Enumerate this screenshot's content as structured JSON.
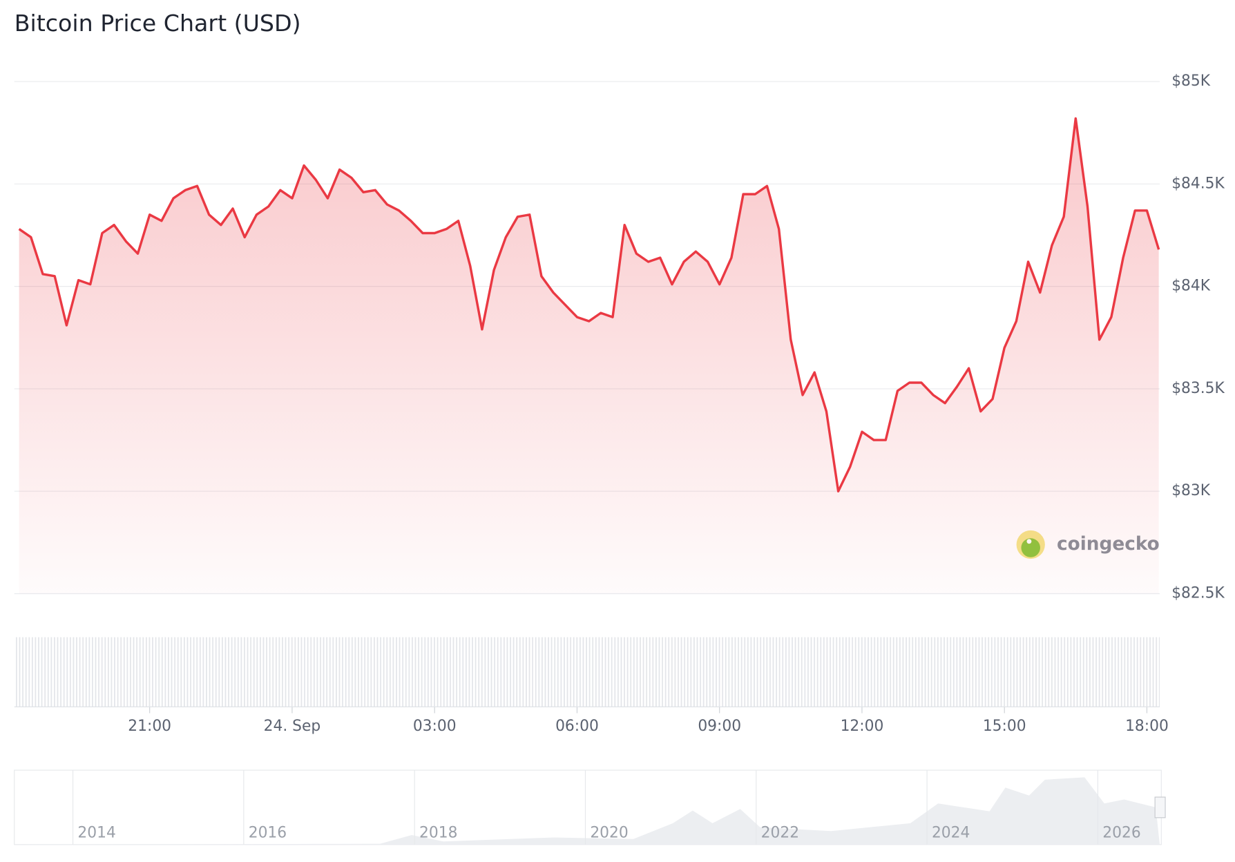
{
  "chart_data": {
    "type": "line",
    "title": "Bitcoin Price Chart (USD)",
    "series": [
      {
        "name": "Bitcoin",
        "color": "#ea3943",
        "values": [
          84280,
          84240,
          84060,
          84050,
          83810,
          84030,
          84010,
          84260,
          84300,
          84220,
          84160,
          84350,
          84320,
          84430,
          84470,
          84490,
          84350,
          84300,
          84380,
          84240,
          84350,
          84390,
          84470,
          84430,
          84590,
          84520,
          84430,
          84570,
          84530,
          84460,
          84470,
          84400,
          84370,
          84320,
          84260,
          84260,
          84280,
          84320,
          84100,
          83790,
          84080,
          84240,
          84340,
          84350,
          84050,
          83970,
          83910,
          83850,
          83830,
          83870,
          83850,
          84300,
          84160,
          84120,
          84140,
          84010,
          84120,
          84170,
          84120,
          84010,
          84140,
          84450,
          84450,
          84490,
          84280,
          83740,
          83470,
          83580,
          83390,
          83000,
          83120,
          83290,
          83250,
          83250,
          83490,
          83530,
          83530,
          83470,
          83430,
          83510,
          83600,
          83390,
          83450,
          83700,
          83830,
          84120,
          83970,
          84200,
          84340,
          84820,
          84390,
          83740,
          83850,
          84140,
          84370,
          84370,
          84180
        ]
      }
    ],
    "x": [
      -5.75,
      -5.5,
      -5.25,
      -5,
      -4.75,
      -4.5,
      -4.25,
      -4,
      -3.75,
      -3.5,
      -3.25,
      -3,
      -2.75,
      -2.5,
      -2.25,
      -2,
      -1.75,
      -1.5,
      -1.25,
      -1,
      -0.75,
      -0.5,
      -0.25,
      0,
      0.25,
      0.5,
      0.75,
      1,
      1.25,
      1.5,
      1.75,
      2,
      2.25,
      2.5,
      2.75,
      3,
      3.25,
      3.5,
      3.75,
      4,
      4.25,
      4.5,
      4.75,
      5,
      5.25,
      5.5,
      5.75,
      6,
      6.25,
      6.5,
      6.75,
      7,
      7.25,
      7.5,
      7.75,
      8,
      8.25,
      8.5,
      8.75,
      9,
      9.25,
      9.5,
      9.75,
      10,
      10.25,
      10.5,
      10.75,
      11,
      11.25,
      11.5,
      11.75,
      12,
      12.25,
      12.5,
      12.75,
      13,
      13.25,
      13.5,
      13.75,
      14,
      14.25,
      14.5,
      14.75,
      15,
      15.25,
      15.5,
      15.75,
      16,
      16.25,
      16.5,
      16.75,
      17,
      17.25,
      17.5,
      17.75,
      18,
      18.25
    ],
    "xlim": [
      -5.85,
      18.27
    ],
    "xticks": [
      {
        "value": -3,
        "label": "21:00"
      },
      {
        "value": 0,
        "label": "24. Sep"
      },
      {
        "value": 3,
        "label": "03:00"
      },
      {
        "value": 6,
        "label": "06:00"
      },
      {
        "value": 9,
        "label": "09:00"
      },
      {
        "value": 12,
        "label": "12:00"
      },
      {
        "value": 15,
        "label": "15:00"
      },
      {
        "value": 18,
        "label": "18:00"
      }
    ],
    "ylim": [
      82500,
      85000
    ],
    "yticks": [
      {
        "value": 82500,
        "label": "$82.5K"
      },
      {
        "value": 83000,
        "label": "$83K"
      },
      {
        "value": 83500,
        "label": "$83.5K"
      },
      {
        "value": 84000,
        "label": "$84K"
      },
      {
        "value": 84500,
        "label": "$84.5K"
      },
      {
        "value": 85000,
        "label": "$85K"
      }
    ],
    "grid": true,
    "watermark": "coingecko",
    "navigator_years": [
      "2014",
      "2016",
      "2018",
      "2020",
      "2022",
      "2024",
      "2026"
    ]
  }
}
